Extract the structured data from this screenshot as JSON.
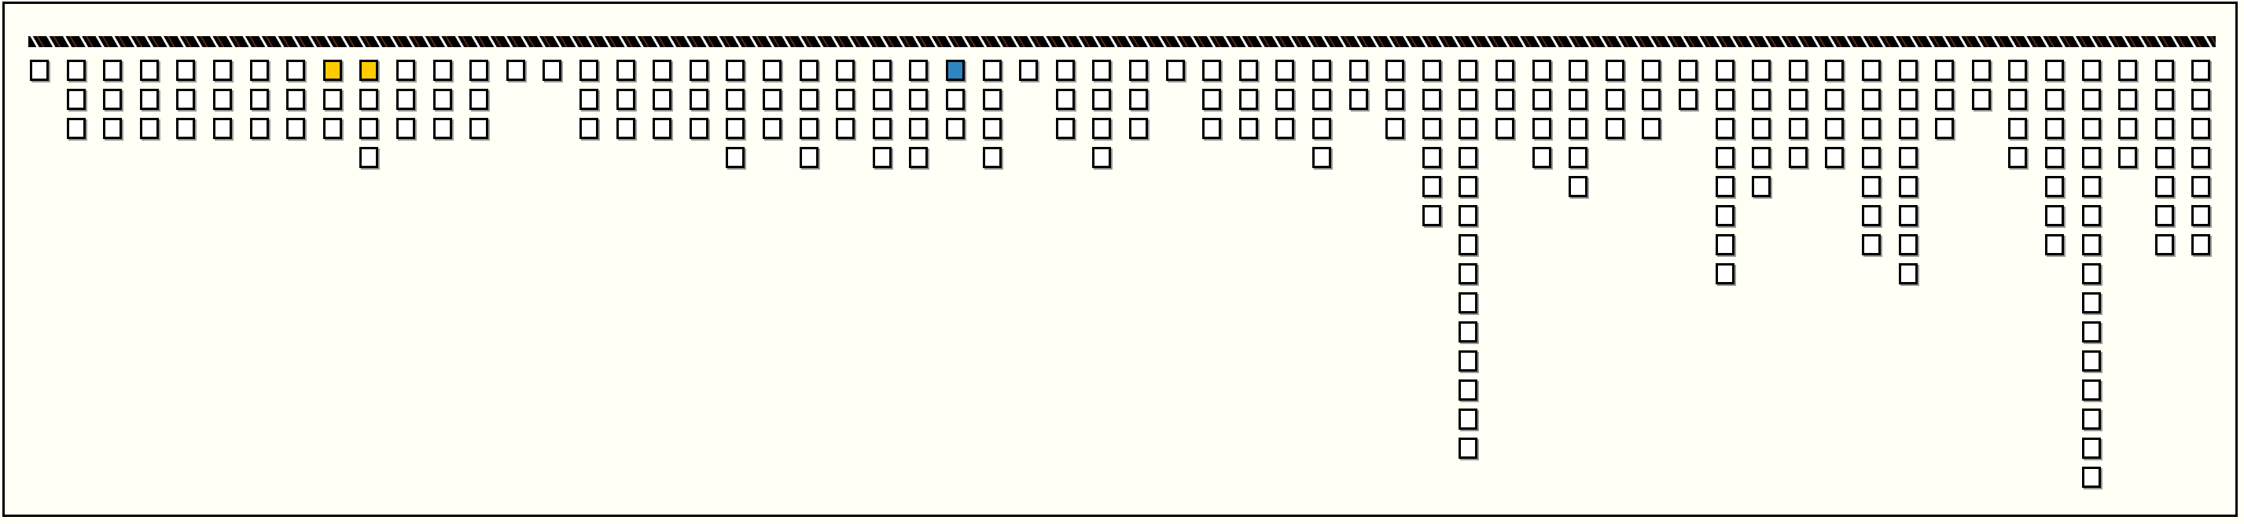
{
  "diagram": {
    "column_counts": [
      1,
      3,
      3,
      3,
      3,
      3,
      3,
      3,
      3,
      4,
      3,
      3,
      3,
      1,
      1,
      3,
      3,
      3,
      3,
      4,
      3,
      4,
      3,
      4,
      4,
      3,
      4,
      1,
      3,
      4,
      3,
      1,
      3,
      3,
      3,
      4,
      2,
      3,
      6,
      14,
      3,
      4,
      5,
      3,
      3,
      2,
      8,
      5,
      4,
      4,
      7,
      8,
      3,
      2,
      4,
      7,
      15,
      4,
      7,
      7
    ],
    "highlighted_cells": [
      {
        "column": 9,
        "row": 1,
        "color": "#ffcc00"
      },
      {
        "column": 10,
        "row": 1,
        "color": "#ffcc00"
      },
      {
        "column": 26,
        "row": 1,
        "color": "#2e86c1"
      }
    ],
    "colors": {
      "background": "#fffff5",
      "cell": "#ffffff",
      "border": "#000000"
    }
  }
}
